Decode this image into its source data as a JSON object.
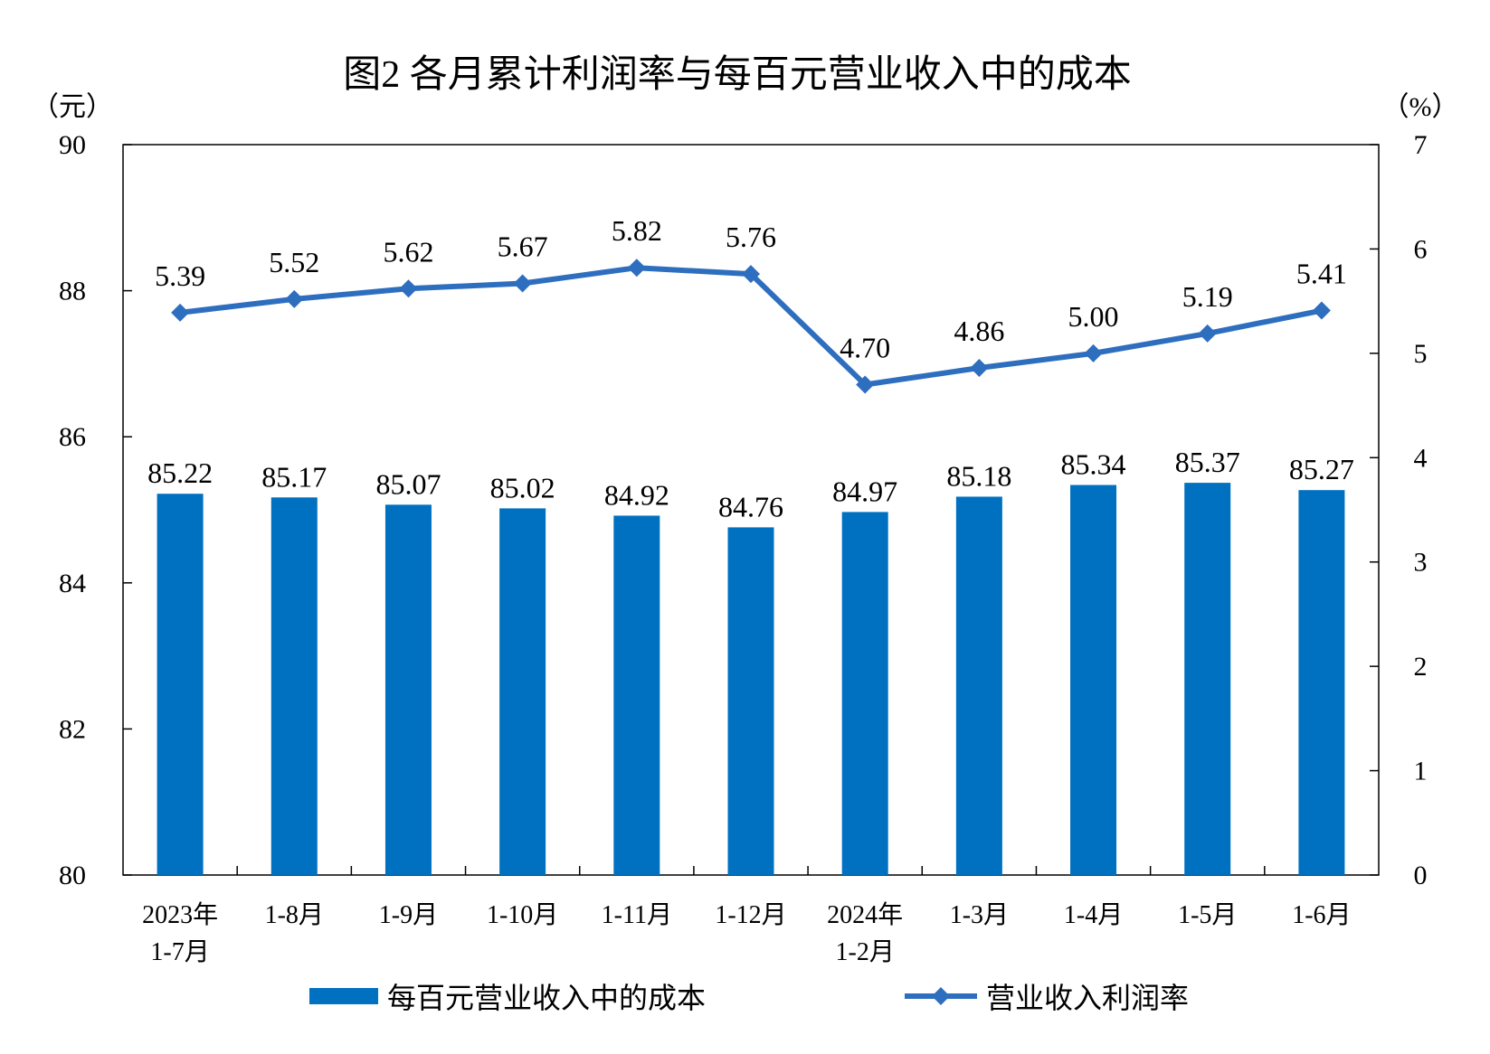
{
  "chart_data": {
    "type": "bar+line",
    "title": "图2  各月累计利润率与每百元营业收入中的成本",
    "left_unit": "（元）",
    "right_unit": "（%）",
    "categories": [
      [
        "2023年",
        "1-7月"
      ],
      [
        "1-8月"
      ],
      [
        "1-9月"
      ],
      [
        "1-10月"
      ],
      [
        "1-11月"
      ],
      [
        "1-12月"
      ],
      [
        "2024年",
        "1-2月"
      ],
      [
        "1-3月"
      ],
      [
        "1-4月"
      ],
      [
        "1-5月"
      ],
      [
        "1-6月"
      ]
    ],
    "y_left": {
      "min": 80,
      "max": 90,
      "ticks": [
        "80",
        "82",
        "84",
        "86",
        "88",
        "90"
      ]
    },
    "y_right": {
      "min": 0,
      "max": 7,
      "ticks": [
        "0",
        "1",
        "2",
        "3",
        "4",
        "5",
        "6",
        "7"
      ]
    },
    "grid": false,
    "legend_placement": "bottom",
    "series": [
      {
        "name": "每百元营业收入中的成本",
        "kind": "bar",
        "axis": "left",
        "color": "#0070C0",
        "values": [
          85.22,
          85.17,
          85.07,
          85.02,
          84.92,
          84.76,
          84.97,
          85.18,
          85.34,
          85.37,
          85.27
        ],
        "labels": [
          "85.22",
          "85.17",
          "85.07",
          "85.02",
          "84.92",
          "84.76",
          "84.97",
          "85.18",
          "85.34",
          "85.37",
          "85.27"
        ]
      },
      {
        "name": "营业收入利润率",
        "kind": "line",
        "axis": "right",
        "color": "#2E6EBF",
        "marker": "diamond",
        "values": [
          5.39,
          5.52,
          5.62,
          5.67,
          5.82,
          5.76,
          4.7,
          4.86,
          5.0,
          5.19,
          5.41
        ],
        "labels": [
          "5.39",
          "5.52",
          "5.62",
          "5.67",
          "5.82",
          "5.76",
          "4.70",
          "4.86",
          "5.00",
          "5.19",
          "5.41"
        ]
      }
    ]
  }
}
